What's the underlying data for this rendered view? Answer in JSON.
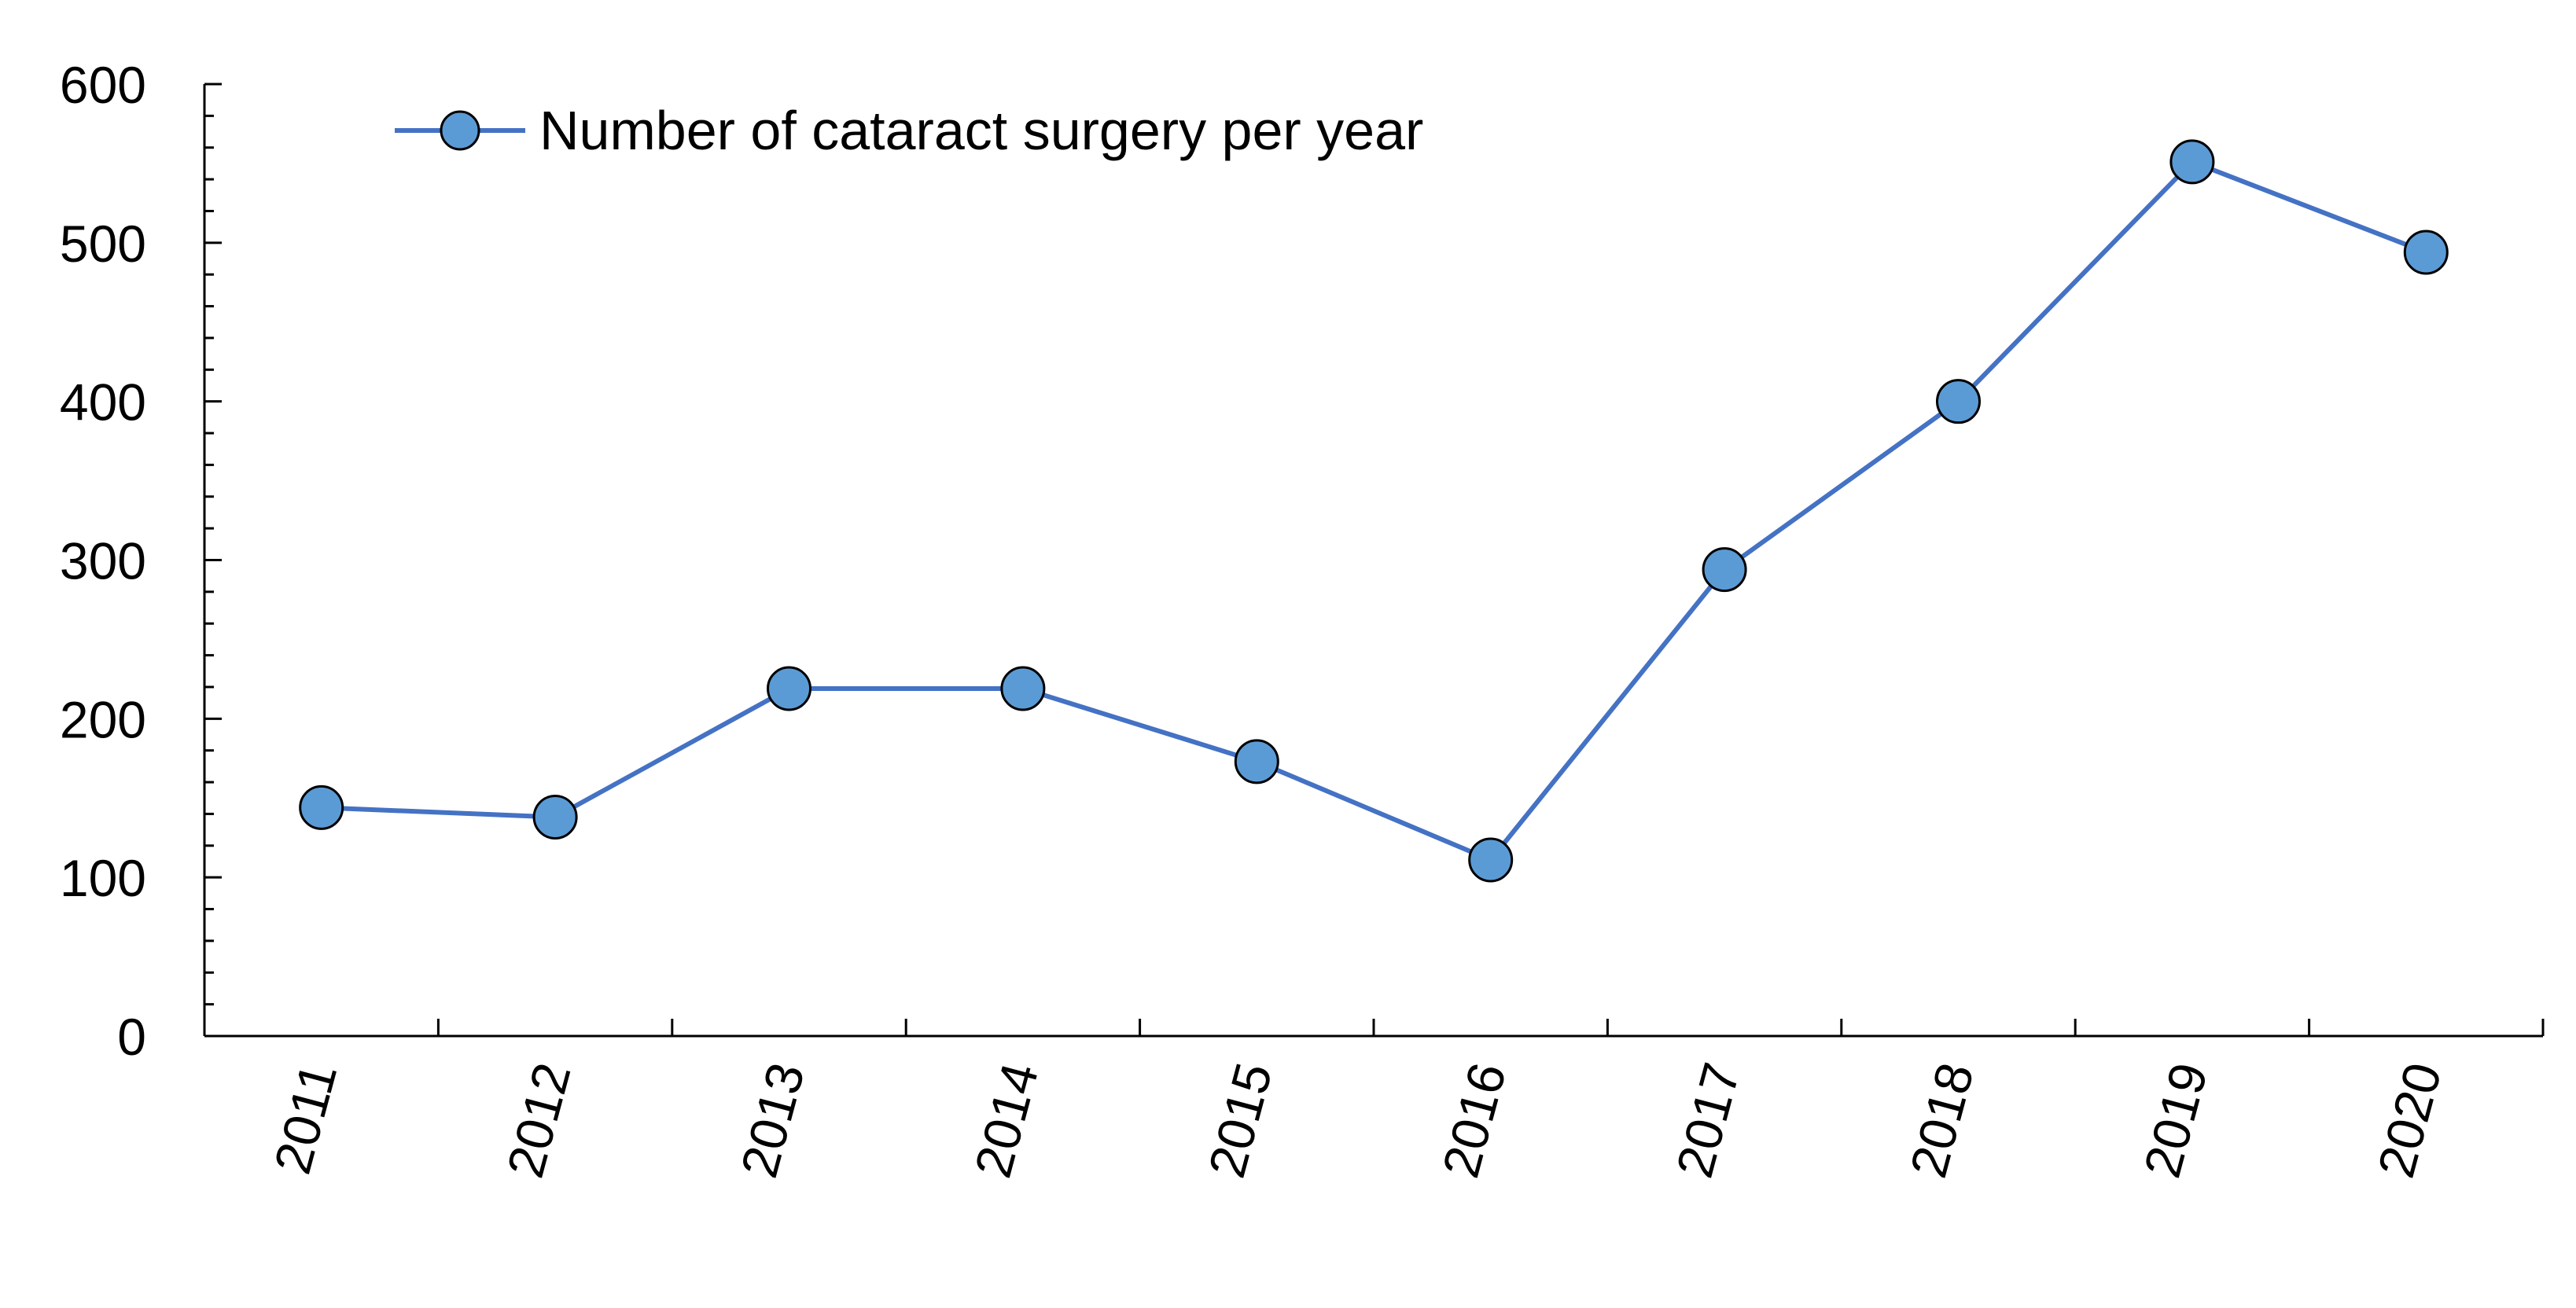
{
  "chart_data": {
    "type": "line",
    "title": "",
    "xlabel": "",
    "ylabel": "",
    "categories": [
      "2011",
      "2012",
      "2013",
      "2014",
      "2015",
      "2016",
      "2017",
      "2018",
      "2019",
      "2020"
    ],
    "series": [
      {
        "name": "Number of cataract surgery per year",
        "values": [
          144,
          138,
          219,
          219,
          173,
          111,
          294,
          400,
          551,
          494
        ]
      }
    ],
    "ylim": [
      0,
      600
    ],
    "yticks": [
      "0",
      "100",
      "200",
      "300",
      "400",
      "500",
      "600"
    ],
    "grid": false,
    "legend_position": "top-left",
    "colors": {
      "line": "#4472C4",
      "marker_fill": "#5B9BD5",
      "marker_edge": "#000000",
      "axis": "#000000"
    }
  }
}
